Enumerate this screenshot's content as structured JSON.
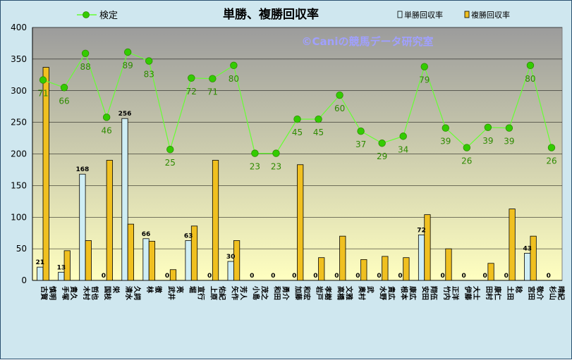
{
  "chart_data": {
    "type": "bar+line",
    "title": "単勝、複勝回収率",
    "watermark": "©Caniの競馬データ研究室",
    "ylim": [
      0,
      400
    ],
    "yticks": [
      0,
      50,
      100,
      150,
      200,
      250,
      300,
      350,
      400
    ],
    "legend": {
      "line": "検定",
      "win": "単勝回収率",
      "place": "複勝回収率"
    },
    "colors": {
      "plot_top": "#9c9c9c",
      "plot_bottom": "#ffffc0",
      "win_bar": "#cfeef5",
      "place_bar": "#f0c020",
      "line": "#66ff33",
      "marker": "#33cc00",
      "line_label": "#2e8b00",
      "bar_edge": "#000000",
      "background": "#cfe7ef"
    },
    "categories": [
      "古賀 慎明",
      "手塚 貴久",
      "木村 哲也",
      "国枝 栄",
      "清水 久詞",
      "林 徹",
      "武井 亮",
      "堀 宣行",
      "上原 佑紀",
      "矢作 芳人",
      "小島 茂之",
      "和田 勇介",
      "加藤 和宏",
      "岩戸 孝樹",
      "高橋 文雅",
      "奥村 武",
      "水野 貴広",
      "根本 康広",
      "安田 翔伍",
      "竹内 正洋",
      "伊藤 大士",
      "田村 康仁",
      "土田 稔",
      "宮田 敬介",
      "杉山 晴紀"
    ],
    "win_values": [
      21,
      13,
      168,
      0,
      256,
      66,
      0,
      63,
      0,
      30,
      0,
      0,
      0,
      0,
      0,
      0,
      0,
      0,
      72,
      0,
      0,
      0,
      0,
      43,
      0
    ],
    "win_labels": [
      "21",
      "13",
      "168",
      "0",
      "256",
      "66",
      "0",
      "63",
      "0",
      "30",
      "0",
      "0",
      "0",
      "0",
      "0",
      "0",
      "0",
      "0",
      "72",
      "0",
      "0",
      "0",
      "0",
      "43",
      "0"
    ],
    "place_values": [
      337,
      47,
      63,
      190,
      89,
      62,
      17,
      86,
      190,
      63,
      0,
      0,
      183,
      36,
      70,
      33,
      38,
      36,
      104,
      50,
      0,
      27,
      113,
      70,
      0
    ],
    "line_values": [
      317,
      305,
      359,
      258,
      361,
      347,
      207,
      320,
      319,
      340,
      201,
      201,
      255,
      255,
      293,
      236,
      217,
      228,
      338,
      241,
      210,
      242,
      241,
      340,
      210
    ],
    "line_labels": [
      "71",
      "66",
      "88",
      "46",
      "89",
      "83",
      "25",
      "72",
      "71",
      "80",
      "23",
      "23",
      "45",
      "45",
      "60",
      "37",
      "29",
      "34",
      "79",
      "39",
      "26",
      "39",
      "39",
      "80",
      "26"
    ]
  }
}
